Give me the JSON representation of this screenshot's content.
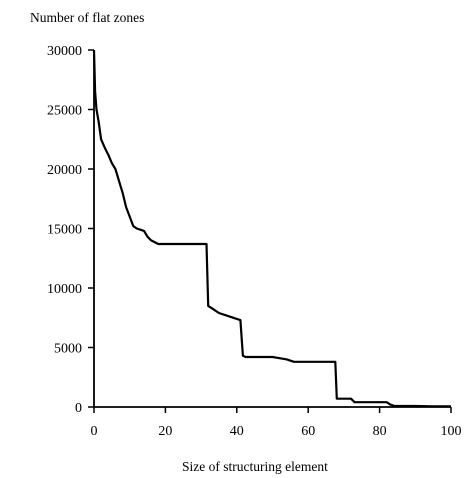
{
  "chart_data": {
    "type": "line",
    "title": "",
    "ylabel": "Number of flat zones",
    "xlabel": "Size of structuring element",
    "xlim": [
      0,
      100
    ],
    "ylim": [
      0,
      30000
    ],
    "x_ticks": [
      "0",
      "20",
      "40",
      "60",
      "80",
      "100"
    ],
    "y_ticks": [
      "0",
      "5000",
      "10000",
      "15000",
      "20000",
      "25000",
      "30000"
    ],
    "grid": false,
    "series": [
      {
        "points": [
          [
            0,
            30000
          ],
          [
            0.3,
            26500
          ],
          [
            0.7,
            25000
          ],
          [
            1.3,
            24000
          ],
          [
            2,
            22500
          ],
          [
            3,
            21800
          ],
          [
            4,
            21200
          ],
          [
            5,
            20500
          ],
          [
            6,
            20000
          ],
          [
            7,
            19000
          ],
          [
            8,
            18000
          ],
          [
            9,
            16800
          ],
          [
            10,
            16000
          ],
          [
            11,
            15200
          ],
          [
            12,
            15000
          ],
          [
            14,
            14800
          ],
          [
            15,
            14300
          ],
          [
            16,
            14000
          ],
          [
            18,
            13700
          ],
          [
            31.5,
            13700
          ],
          [
            32,
            8500
          ],
          [
            33,
            8300
          ],
          [
            35,
            7900
          ],
          [
            38,
            7600
          ],
          [
            40,
            7400
          ],
          [
            41,
            7300
          ],
          [
            41.7,
            4300
          ],
          [
            42.5,
            4200
          ],
          [
            50,
            4200
          ],
          [
            52,
            4100
          ],
          [
            54,
            4000
          ],
          [
            56,
            3800
          ],
          [
            62,
            3800
          ],
          [
            67.6,
            3800
          ],
          [
            68,
            700
          ],
          [
            72,
            700
          ],
          [
            73,
            400
          ],
          [
            82,
            400
          ],
          [
            83,
            200
          ],
          [
            84,
            100
          ],
          [
            90,
            80
          ],
          [
            95,
            60
          ],
          [
            100,
            50
          ]
        ]
      }
    ],
    "style": {
      "line_color": "#000000"
    }
  }
}
